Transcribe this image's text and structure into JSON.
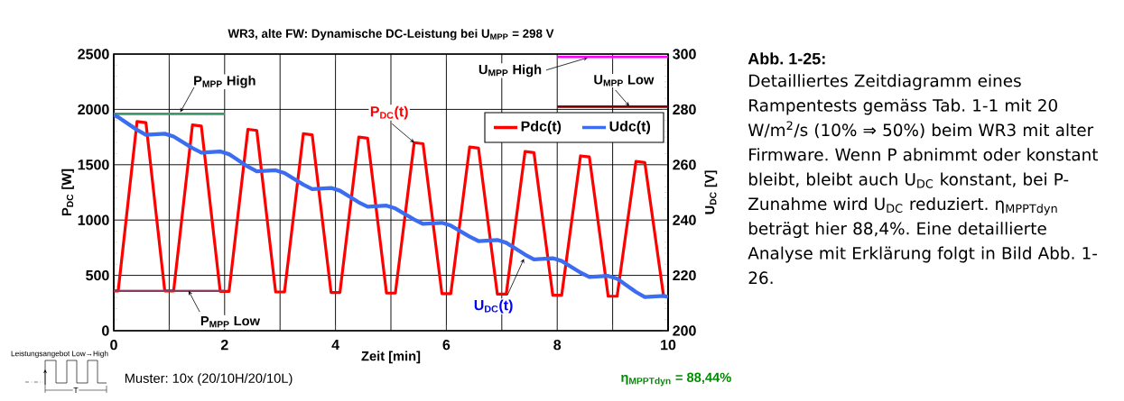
{
  "chart_data": {
    "type": "line",
    "title": "WR3, alte FW: Dynamische DC-Leistung bei U$_{MPP}$ = 298 V",
    "xlabel": "Zeit [min]",
    "ylabel": "P$_{DC}$ [W]",
    "y2label": "U$_{DC}$ [V]",
    "x": [
      0,
      0.08,
      0.42,
      0.58,
      0.92,
      1.08,
      1.42,
      1.58,
      1.92,
      2.08,
      2.42,
      2.58,
      2.92,
      3.08,
      3.42,
      3.58,
      3.92,
      4.08,
      4.42,
      4.58,
      4.92,
      5.08,
      5.42,
      5.58,
      5.92,
      6.08,
      6.42,
      6.58,
      6.92,
      7.08,
      7.42,
      7.58,
      7.92,
      8.08,
      8.42,
      8.58,
      8.92,
      9.08,
      9.42,
      9.58,
      9.92,
      10
    ],
    "series": [
      {
        "name": "Pdc(t)",
        "color": "#ff0000",
        "values": [
          360,
          360,
          1890,
          1880,
          360,
          360,
          1860,
          1850,
          355,
          355,
          1820,
          1810,
          350,
          350,
          1780,
          1770,
          345,
          345,
          1750,
          1740,
          340,
          340,
          1700,
          1690,
          335,
          335,
          1660,
          1650,
          330,
          330,
          1620,
          1610,
          320,
          320,
          1580,
          1570,
          310,
          310,
          1530,
          1520,
          310,
          310
        ]
      },
      {
        "name": "Udc(t)",
        "color": "#3c6cf0",
        "axis": "y2",
        "values": [
          278,
          277.2,
          272.6,
          270.8,
          271.2,
          270.2,
          266.0,
          264.4,
          264.8,
          263.8,
          259.3,
          257.6,
          258.0,
          257.0,
          252.8,
          251.2,
          251.6,
          250.6,
          246.4,
          244.8,
          245.2,
          244.2,
          240.2,
          238.6,
          239.0,
          238.0,
          234.0,
          232.4,
          232.8,
          231.8,
          227.5,
          225.8,
          226.2,
          225.2,
          221.0,
          219.4,
          219.8,
          218.8,
          214.0,
          212.2,
          212.6,
          212.2
        ]
      },
      {
        "color": "#3a9a6a",
        "x": [
          0,
          2
        ],
        "values": [
          1960,
          1960
        ]
      },
      {
        "color": "#8b3a62",
        "x": [
          0,
          2
        ],
        "values": [
          360,
          360
        ]
      },
      {
        "color": "#ff00ff",
        "axis": "y2",
        "x": [
          8,
          10
        ],
        "values": [
          299,
          299
        ]
      },
      {
        "color": "#800000",
        "axis": "y2",
        "x": [
          8,
          10
        ],
        "values": [
          281,
          281
        ]
      }
    ],
    "xlim": [
      0,
      10
    ],
    "xticks": [
      0,
      {
        "value": 1,
        "label": null
      },
      2,
      {
        "value": 3,
        "label": null
      },
      4,
      {
        "value": 5,
        "label": null
      },
      6,
      {
        "value": 7,
        "label": null
      },
      8,
      {
        "value": 9,
        "label": null
      },
      10
    ],
    "ylim": [
      0,
      2500
    ],
    "yticks": [
      0,
      500,
      1000,
      1500,
      2000,
      2500
    ],
    "y2lim": [
      200,
      300
    ],
    "y2ticks": [
      200,
      220,
      240,
      260,
      280,
      300
    ],
    "grid": true,
    "legend": "top right",
    "annotations": [
      {
        "text": "P$_{DC}$(t)",
        "x": 5.42,
        "y": 1700
      },
      {
        "text": "U$_{DC}$(t)",
        "x": 7.4,
        "y": 650
      },
      {
        "text": "P$_{MPP}$ High",
        "x": 1.2,
        "y": 1960
      },
      {
        "text": "P$_{MPP}$ Low",
        "x": 1.35,
        "y": 360
      },
      {
        "text": "U$_{MPP}$ High",
        "x": 8.55,
        "y": 2475
      },
      {
        "text": "U$_{MPP}$ Low",
        "x": 9.3,
        "y": 2025
      },
      "Muster: 10x (20/10H/20/10L)",
      "η$_{MPPTdyn}$ = 88,44%",
      "Leistungsangebot Low→High",
      "T",
      "Abb. 1-25:",
      "Detailliertes Zeitdiagramm eines Rampentests gemäss Tab. 1-1 mit 20 W/m$^{2}$/s (10% ⇒ 50%) beim WR3 mit alter Firmware. Wenn P abnimmt oder konstant bleibt, bleibt auch U$_{DC}$ konstant, bei P-Zunahme wird U$_{DC}$ reduziert. η$_{MPPTdyn}$ beträgt hier 88,4%. Eine detaillierte Analyse mit Erklärung folgt in Bild Abb. 1-26."
    ]
  }
}
